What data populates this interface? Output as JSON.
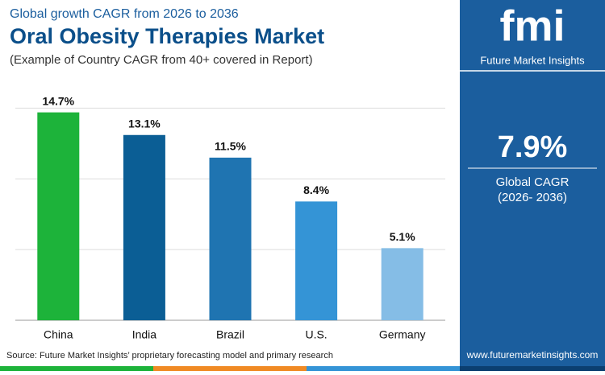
{
  "header": {
    "kicker": "Global growth CAGR from 2026 to 2036",
    "title": "Oral Obesity Therapies Market",
    "subtitle": "(Example of Country CAGR from 40+ covered in Report)"
  },
  "chart_data": {
    "type": "bar",
    "categories": [
      "China",
      "India",
      "Brazil",
      "U.S.",
      "Germany"
    ],
    "values": [
      14.7,
      13.1,
      11.5,
      8.4,
      5.1
    ],
    "value_labels": [
      "14.7%",
      "13.1%",
      "11.5%",
      "8.4%",
      "5.1%"
    ],
    "colors": [
      "#1db33a",
      "#0b5e95",
      "#1f74b1",
      "#3494d6",
      "#85bde6"
    ],
    "ylim": [
      0,
      16.5
    ],
    "yticks": [
      0,
      5,
      10,
      15
    ],
    "grid": true
  },
  "side_panel": {
    "logo": "fmi",
    "brand": "Future Market Insights",
    "value": "7.9%",
    "label": "Global CAGR",
    "period": "(2026- 2036)",
    "website": "www.futuremarketinsights.com"
  },
  "footer": {
    "source": "Source: Future Market Insights’ proprietary forecasting model and primary research"
  }
}
